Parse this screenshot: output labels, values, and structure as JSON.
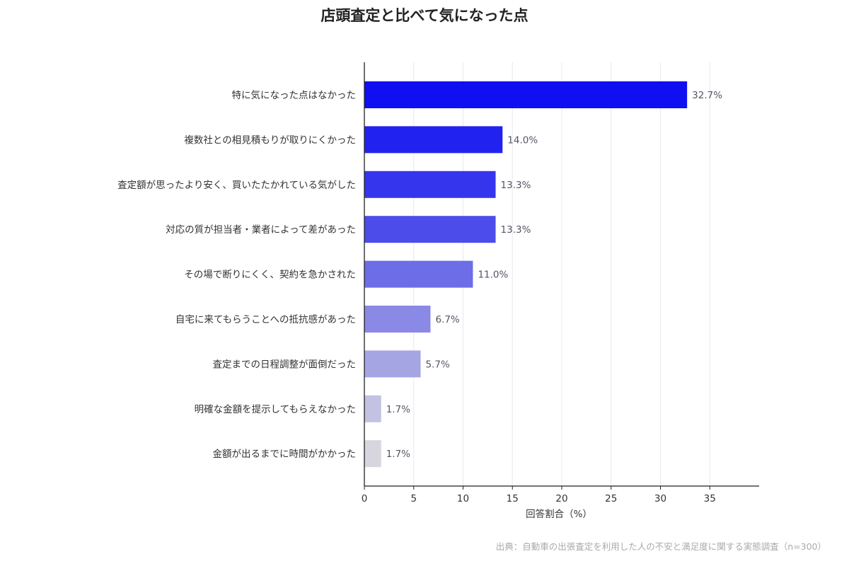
{
  "chart_data": {
    "type": "bar",
    "orientation": "horizontal",
    "title": "店頭査定と比べて気になった点",
    "xlabel": "回答割合（%）",
    "ylabel": "",
    "xlim": [
      0,
      40
    ],
    "xticks": [
      0,
      5,
      10,
      15,
      20,
      25,
      30,
      35
    ],
    "grid": "vertical",
    "categories": [
      "特に気になった点はなかった",
      "複数社との相見積もりが取りにくかった",
      "査定額が思ったより安く、買いたたかれている気がした",
      "対応の質が担当者・業者によって差があった",
      "その場で断りにくく、契約を急かされた",
      "自宅に来てもらうことへの抵抗感があった",
      "査定までの日程調整が面倒だった",
      "明確な金額を提示してもらえなかった",
      "金額が出るまでに時間がかかった"
    ],
    "values": [
      32.7,
      14.0,
      13.3,
      13.3,
      11.0,
      6.7,
      5.7,
      1.7,
      1.7
    ],
    "value_labels": [
      "32.7%",
      "14.0%",
      "13.3%",
      "13.3%",
      "11.0%",
      "6.7%",
      "5.7%",
      "1.7%",
      "1.7%"
    ],
    "bar_colors": [
      "#0f0ff2",
      "#2222f0",
      "#3535ee",
      "#4c4ceb",
      "#6e6de8",
      "#8a89e6",
      "#a6a5e4",
      "#c3c2e2",
      "#d7d6de"
    ],
    "source_note": "出典：自動車の出張査定を利用した人の不安と満足度に関する実態調査（n=300）"
  }
}
